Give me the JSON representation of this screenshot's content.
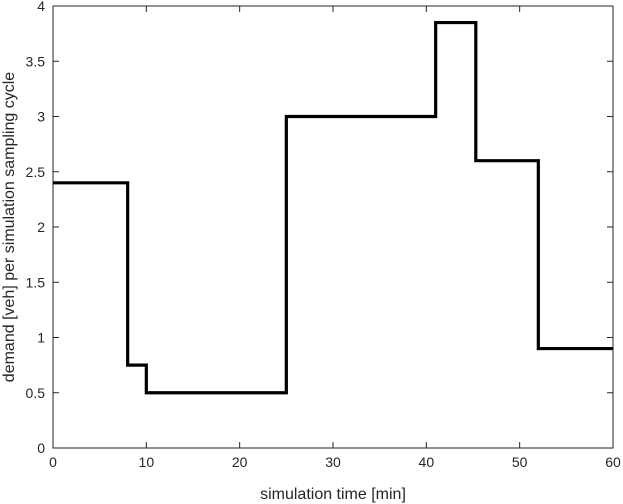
{
  "chart_data": {
    "type": "line",
    "step": true,
    "xlabel": "simulation time [min]",
    "ylabel": "demand [veh] per simulation sampling cycle",
    "xlim": [
      0,
      60
    ],
    "ylim": [
      0,
      4
    ],
    "xticks": [
      0,
      10,
      20,
      30,
      40,
      50,
      60
    ],
    "yticks": [
      0,
      0.5,
      1,
      1.5,
      2,
      2.5,
      3,
      3.5,
      4
    ],
    "ytick_labels": [
      "0",
      "0.5",
      "1",
      "1.5",
      "2",
      "2.5",
      "3",
      "3.5",
      "4"
    ],
    "grid": false,
    "color": "#000000",
    "series": [
      {
        "x": [
          0,
          8,
          8,
          10,
          10,
          25,
          25,
          41,
          41,
          45.3,
          45.3,
          52,
          52,
          60
        ],
        "y": [
          2.4,
          2.4,
          0.75,
          0.75,
          0.5,
          0.5,
          3.0,
          3.0,
          3.85,
          3.85,
          2.6,
          2.6,
          0.9,
          0.9
        ]
      }
    ]
  }
}
